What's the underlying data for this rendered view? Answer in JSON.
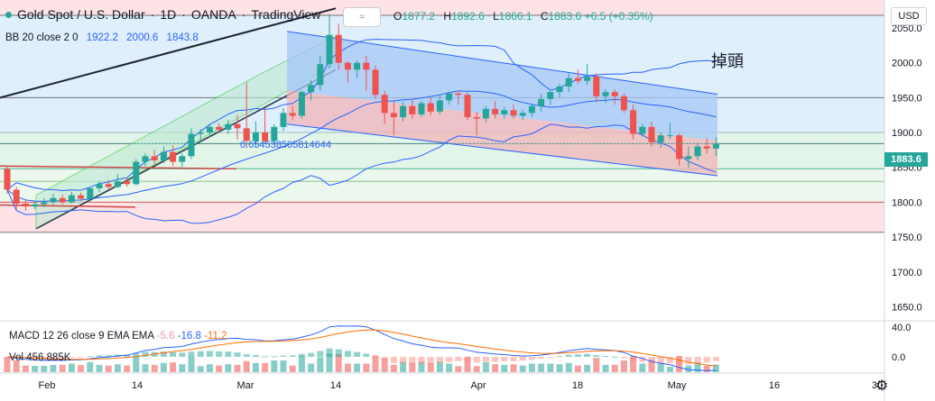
{
  "header": {
    "symbol": "Gold Spot / U.S. Dollar",
    "sep1": "·",
    "interval": "1D",
    "sep2": "·",
    "exchange": "OANDA",
    "sep3": "·",
    "platform": "TradingView",
    "toggle_label": "≈"
  },
  "ohlc": {
    "o_label": "O",
    "o": "1877.2",
    "h_label": "H",
    "h": "1892.6",
    "l_label": "L",
    "l": "1866.1",
    "c_label": "C",
    "c": "1883.6",
    "change": "+6.5 (+0.35%)"
  },
  "indicators": {
    "bb_label": "BB 20 close 2 0",
    "bb_mid": "1922.2",
    "bb_up": "2000.6",
    "bb_low": "1843.8",
    "macd_label": "MACD 12 26 close 9 EMA EMA",
    "macd_hist": "-5.6",
    "macd_line": "-16.8",
    "macd_signal": "-11.2",
    "vol_label": "Vol",
    "vol_value": "456.885K"
  },
  "currency_button": "USD",
  "annotation": "掉頭",
  "fib_label": "0.654538505814644",
  "current_price": "1883.6",
  "colors": {
    "up": "#26a69a",
    "down": "#ef5350",
    "bb": "#2962ff",
    "accent": "#2962ff"
  },
  "chart_data": {
    "type": "candlestick",
    "title": "Gold Spot / U.S. Dollar · 1D · OANDA",
    "ylim": [
      1630,
      2090
    ],
    "y_ticks": [
      "2050.0",
      "2000.0",
      "1950.0",
      "1900.0",
      "1850.0",
      "1800.0",
      "1750.0",
      "1700.0",
      "1650.0"
    ],
    "x_ticks": [
      "Feb",
      "14",
      "Mar",
      "14",
      "Apr",
      "18",
      "May",
      "16",
      "30"
    ],
    "macd_ticks": [
      "40.0",
      "0.0"
    ],
    "candles": [
      {
        "o": 1848,
        "h": 1852,
        "l": 1812,
        "c": 1818
      },
      {
        "o": 1818,
        "h": 1822,
        "l": 1790,
        "c": 1798
      },
      {
        "o": 1798,
        "h": 1804,
        "l": 1788,
        "c": 1794
      },
      {
        "o": 1794,
        "h": 1800,
        "l": 1790,
        "c": 1797
      },
      {
        "o": 1797,
        "h": 1806,
        "l": 1793,
        "c": 1800
      },
      {
        "o": 1800,
        "h": 1812,
        "l": 1796,
        "c": 1806
      },
      {
        "o": 1806,
        "h": 1811,
        "l": 1797,
        "c": 1800
      },
      {
        "o": 1800,
        "h": 1815,
        "l": 1798,
        "c": 1810
      },
      {
        "o": 1810,
        "h": 1814,
        "l": 1802,
        "c": 1805
      },
      {
        "o": 1805,
        "h": 1822,
        "l": 1803,
        "c": 1820
      },
      {
        "o": 1820,
        "h": 1830,
        "l": 1815,
        "c": 1826
      },
      {
        "o": 1826,
        "h": 1832,
        "l": 1818,
        "c": 1822
      },
      {
        "o": 1822,
        "h": 1840,
        "l": 1820,
        "c": 1830
      },
      {
        "o": 1830,
        "h": 1835,
        "l": 1822,
        "c": 1826
      },
      {
        "o": 1826,
        "h": 1862,
        "l": 1824,
        "c": 1858
      },
      {
        "o": 1858,
        "h": 1870,
        "l": 1852,
        "c": 1866
      },
      {
        "o": 1866,
        "h": 1875,
        "l": 1855,
        "c": 1860
      },
      {
        "o": 1860,
        "h": 1880,
        "l": 1856,
        "c": 1872
      },
      {
        "o": 1872,
        "h": 1882,
        "l": 1852,
        "c": 1858
      },
      {
        "o": 1858,
        "h": 1870,
        "l": 1851,
        "c": 1866
      },
      {
        "o": 1866,
        "h": 1906,
        "l": 1862,
        "c": 1898
      },
      {
        "o": 1898,
        "h": 1905,
        "l": 1886,
        "c": 1900
      },
      {
        "o": 1900,
        "h": 1912,
        "l": 1894,
        "c": 1908
      },
      {
        "o": 1908,
        "h": 1913,
        "l": 1900,
        "c": 1904
      },
      {
        "o": 1904,
        "h": 1918,
        "l": 1898,
        "c": 1912
      },
      {
        "o": 1912,
        "h": 1925,
        "l": 1890,
        "c": 1906
      },
      {
        "o": 1906,
        "h": 1972,
        "l": 1878,
        "c": 1888
      },
      {
        "o": 1888,
        "h": 1916,
        "l": 1880,
        "c": 1900
      },
      {
        "o": 1900,
        "h": 1935,
        "l": 1884,
        "c": 1888
      },
      {
        "o": 1888,
        "h": 1912,
        "l": 1884,
        "c": 1908
      },
      {
        "o": 1908,
        "h": 1935,
        "l": 1902,
        "c": 1928
      },
      {
        "o": 1928,
        "h": 1938,
        "l": 1918,
        "c": 1924
      },
      {
        "o": 1924,
        "h": 1960,
        "l": 1920,
        "c": 1958
      },
      {
        "o": 1958,
        "h": 1975,
        "l": 1946,
        "c": 1968
      },
      {
        "o": 1968,
        "h": 2010,
        "l": 1960,
        "c": 1998
      },
      {
        "o": 1998,
        "h": 2070,
        "l": 1992,
        "c": 2040
      },
      {
        "o": 2040,
        "h": 2056,
        "l": 1990,
        "c": 2000
      },
      {
        "o": 2000,
        "h": 2002,
        "l": 1972,
        "c": 1990
      },
      {
        "o": 1990,
        "h": 2003,
        "l": 1978,
        "c": 2000
      },
      {
        "o": 2000,
        "h": 2010,
        "l": 1960,
        "c": 1990
      },
      {
        "o": 1990,
        "h": 1996,
        "l": 1948,
        "c": 1954
      },
      {
        "o": 1954,
        "h": 1960,
        "l": 1912,
        "c": 1928
      },
      {
        "o": 1928,
        "h": 1945,
        "l": 1896,
        "c": 1922
      },
      {
        "o": 1922,
        "h": 1944,
        "l": 1916,
        "c": 1938
      },
      {
        "o": 1938,
        "h": 1948,
        "l": 1920,
        "c": 1926
      },
      {
        "o": 1926,
        "h": 1945,
        "l": 1922,
        "c": 1942
      },
      {
        "o": 1942,
        "h": 1950,
        "l": 1925,
        "c": 1930
      },
      {
        "o": 1930,
        "h": 1955,
        "l": 1926,
        "c": 1946
      },
      {
        "o": 1946,
        "h": 1958,
        "l": 1940,
        "c": 1956
      },
      {
        "o": 1956,
        "h": 1960,
        "l": 1940,
        "c": 1954
      },
      {
        "o": 1954,
        "h": 1958,
        "l": 1918,
        "c": 1922
      },
      {
        "o": 1922,
        "h": 1930,
        "l": 1896,
        "c": 1920
      },
      {
        "o": 1920,
        "h": 1938,
        "l": 1914,
        "c": 1934
      },
      {
        "o": 1934,
        "h": 1945,
        "l": 1920,
        "c": 1926
      },
      {
        "o": 1926,
        "h": 1937,
        "l": 1920,
        "c": 1932
      },
      {
        "o": 1932,
        "h": 1940,
        "l": 1920,
        "c": 1924
      },
      {
        "o": 1924,
        "h": 1933,
        "l": 1918,
        "c": 1928
      },
      {
        "o": 1928,
        "h": 1940,
        "l": 1922,
        "c": 1938
      },
      {
        "o": 1938,
        "h": 1956,
        "l": 1930,
        "c": 1948
      },
      {
        "o": 1948,
        "h": 1962,
        "l": 1940,
        "c": 1958
      },
      {
        "o": 1958,
        "h": 1970,
        "l": 1950,
        "c": 1966
      },
      {
        "o": 1966,
        "h": 1985,
        "l": 1958,
        "c": 1978
      },
      {
        "o": 1978,
        "h": 1990,
        "l": 1970,
        "c": 1974
      },
      {
        "o": 1974,
        "h": 1998,
        "l": 1968,
        "c": 1980
      },
      {
        "o": 1980,
        "h": 1985,
        "l": 1944,
        "c": 1952
      },
      {
        "o": 1952,
        "h": 1962,
        "l": 1942,
        "c": 1958
      },
      {
        "o": 1958,
        "h": 1962,
        "l": 1940,
        "c": 1952
      },
      {
        "o": 1952,
        "h": 1956,
        "l": 1928,
        "c": 1932
      },
      {
        "o": 1932,
        "h": 1940,
        "l": 1890,
        "c": 1898
      },
      {
        "o": 1898,
        "h": 1912,
        "l": 1894,
        "c": 1908
      },
      {
        "o": 1908,
        "h": 1915,
        "l": 1880,
        "c": 1886
      },
      {
        "o": 1886,
        "h": 1900,
        "l": 1878,
        "c": 1896
      },
      {
        "o": 1896,
        "h": 1914,
        "l": 1890,
        "c": 1896
      },
      {
        "o": 1896,
        "h": 1898,
        "l": 1852,
        "c": 1862
      },
      {
        "o": 1862,
        "h": 1880,
        "l": 1850,
        "c": 1866
      },
      {
        "o": 1866,
        "h": 1885,
        "l": 1860,
        "c": 1880
      },
      {
        "o": 1880,
        "h": 1892,
        "l": 1870,
        "c": 1877
      },
      {
        "o": 1877,
        "h": 1893,
        "l": 1866,
        "c": 1884
      }
    ]
  }
}
